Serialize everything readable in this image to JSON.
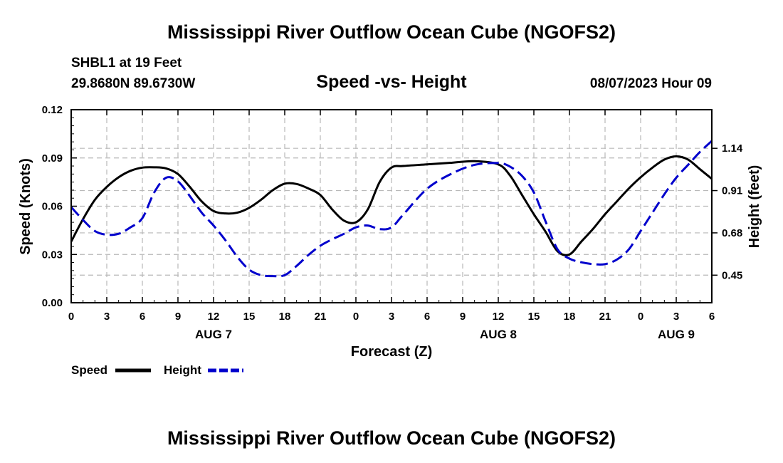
{
  "header": {
    "title": "Mississippi River Outflow Ocean Cube (NGOFS2)",
    "station": "SHBL1 at 19 Feet",
    "location": "29.8680N  89.6730W",
    "subtitle": "Speed -vs- Height",
    "datetime": "08/07/2023 Hour 09"
  },
  "footer": {
    "title": "Mississippi River Outflow Ocean Cube (NGOFS2)"
  },
  "legend": {
    "speed_label": "Speed",
    "height_label": "Height"
  },
  "colors": {
    "speed": "#000000",
    "height": "#0000cc",
    "grid": "#b8b8b8"
  },
  "chart_data": {
    "type": "line",
    "title": "Speed -vs- Height",
    "xlabel": "Forecast (Z)",
    "ylabel": "Speed (Knots)",
    "y2label": "Height (feet)",
    "xlim": [
      0,
      54
    ],
    "ylim": [
      0,
      0.12
    ],
    "y2lim": [
      0.3,
      1.35
    ],
    "x_ticks": [
      0,
      3,
      6,
      9,
      12,
      15,
      18,
      21,
      24,
      27,
      30,
      33,
      36,
      39,
      42,
      45,
      48,
      51,
      54
    ],
    "x_tick_labels": [
      "0",
      "3",
      "6",
      "9",
      "12",
      "15",
      "18",
      "21",
      "0",
      "3",
      "6",
      "9",
      "12",
      "15",
      "18",
      "21",
      "0",
      "3",
      "6"
    ],
    "day_labels": [
      {
        "x": 12,
        "label": "AUG 7"
      },
      {
        "x": 36,
        "label": "AUG 8"
      },
      {
        "x": 51,
        "label": "AUG 9"
      }
    ],
    "y_ticks": [
      0.0,
      0.03,
      0.06,
      0.09,
      0.12
    ],
    "y_tick_labels": [
      "0.00",
      "0.03",
      "0.06",
      "0.09",
      "0.12"
    ],
    "y2_ticks": [
      0.45,
      0.68,
      0.91,
      1.14
    ],
    "y2_tick_labels": [
      "0.45",
      "0.68",
      "0.91",
      "1.14"
    ],
    "grid": true,
    "series": [
      {
        "name": "Speed",
        "axis": "left",
        "style": "solid",
        "x": [
          0,
          1,
          2,
          3,
          4,
          5,
          6,
          7,
          8,
          9,
          10,
          11,
          12,
          13,
          14,
          15,
          16,
          17,
          18,
          19,
          20,
          21,
          22,
          23,
          24,
          25,
          26,
          27,
          28,
          30,
          32,
          34,
          36,
          37,
          38,
          39,
          40,
          41,
          42,
          43,
          44,
          45,
          46,
          47,
          48,
          49,
          50,
          51,
          52,
          53,
          54
        ],
        "values": [
          0.038,
          0.052,
          0.064,
          0.072,
          0.078,
          0.082,
          0.084,
          0.0842,
          0.0835,
          0.08,
          0.072,
          0.063,
          0.057,
          0.0555,
          0.056,
          0.059,
          0.064,
          0.07,
          0.074,
          0.0738,
          0.071,
          0.067,
          0.058,
          0.051,
          0.05,
          0.058,
          0.075,
          0.084,
          0.085,
          0.086,
          0.087,
          0.088,
          0.086,
          0.079,
          0.067,
          0.055,
          0.044,
          0.032,
          0.03,
          0.038,
          0.046,
          0.055,
          0.063,
          0.071,
          0.078,
          0.084,
          0.089,
          0.091,
          0.089,
          0.083,
          0.077
        ]
      },
      {
        "name": "Height",
        "axis": "right",
        "style": "dashed",
        "x": [
          0,
          1,
          2,
          3,
          4,
          5,
          6,
          7,
          8,
          9,
          10,
          11,
          12,
          13,
          14,
          15,
          16,
          17,
          18,
          19,
          20,
          21,
          22,
          23,
          24,
          25,
          26,
          27,
          28,
          30,
          32,
          34,
          36,
          37,
          38,
          39,
          40,
          41,
          42,
          43,
          44,
          45,
          46,
          47,
          48,
          49,
          50,
          51,
          52,
          53,
          54
        ],
        "values": [
          0.82,
          0.75,
          0.69,
          0.67,
          0.675,
          0.71,
          0.76,
          0.9,
          0.98,
          0.96,
          0.88,
          0.79,
          0.72,
          0.64,
          0.55,
          0.48,
          0.45,
          0.445,
          0.45,
          0.5,
          0.56,
          0.61,
          0.645,
          0.675,
          0.71,
          0.72,
          0.7,
          0.71,
          0.78,
          0.92,
          1.0,
          1.05,
          1.06,
          1.04,
          0.99,
          0.9,
          0.74,
          0.59,
          0.54,
          0.52,
          0.51,
          0.51,
          0.535,
          0.59,
          0.69,
          0.79,
          0.89,
          0.98,
          1.05,
          1.12,
          1.18
        ]
      }
    ]
  }
}
